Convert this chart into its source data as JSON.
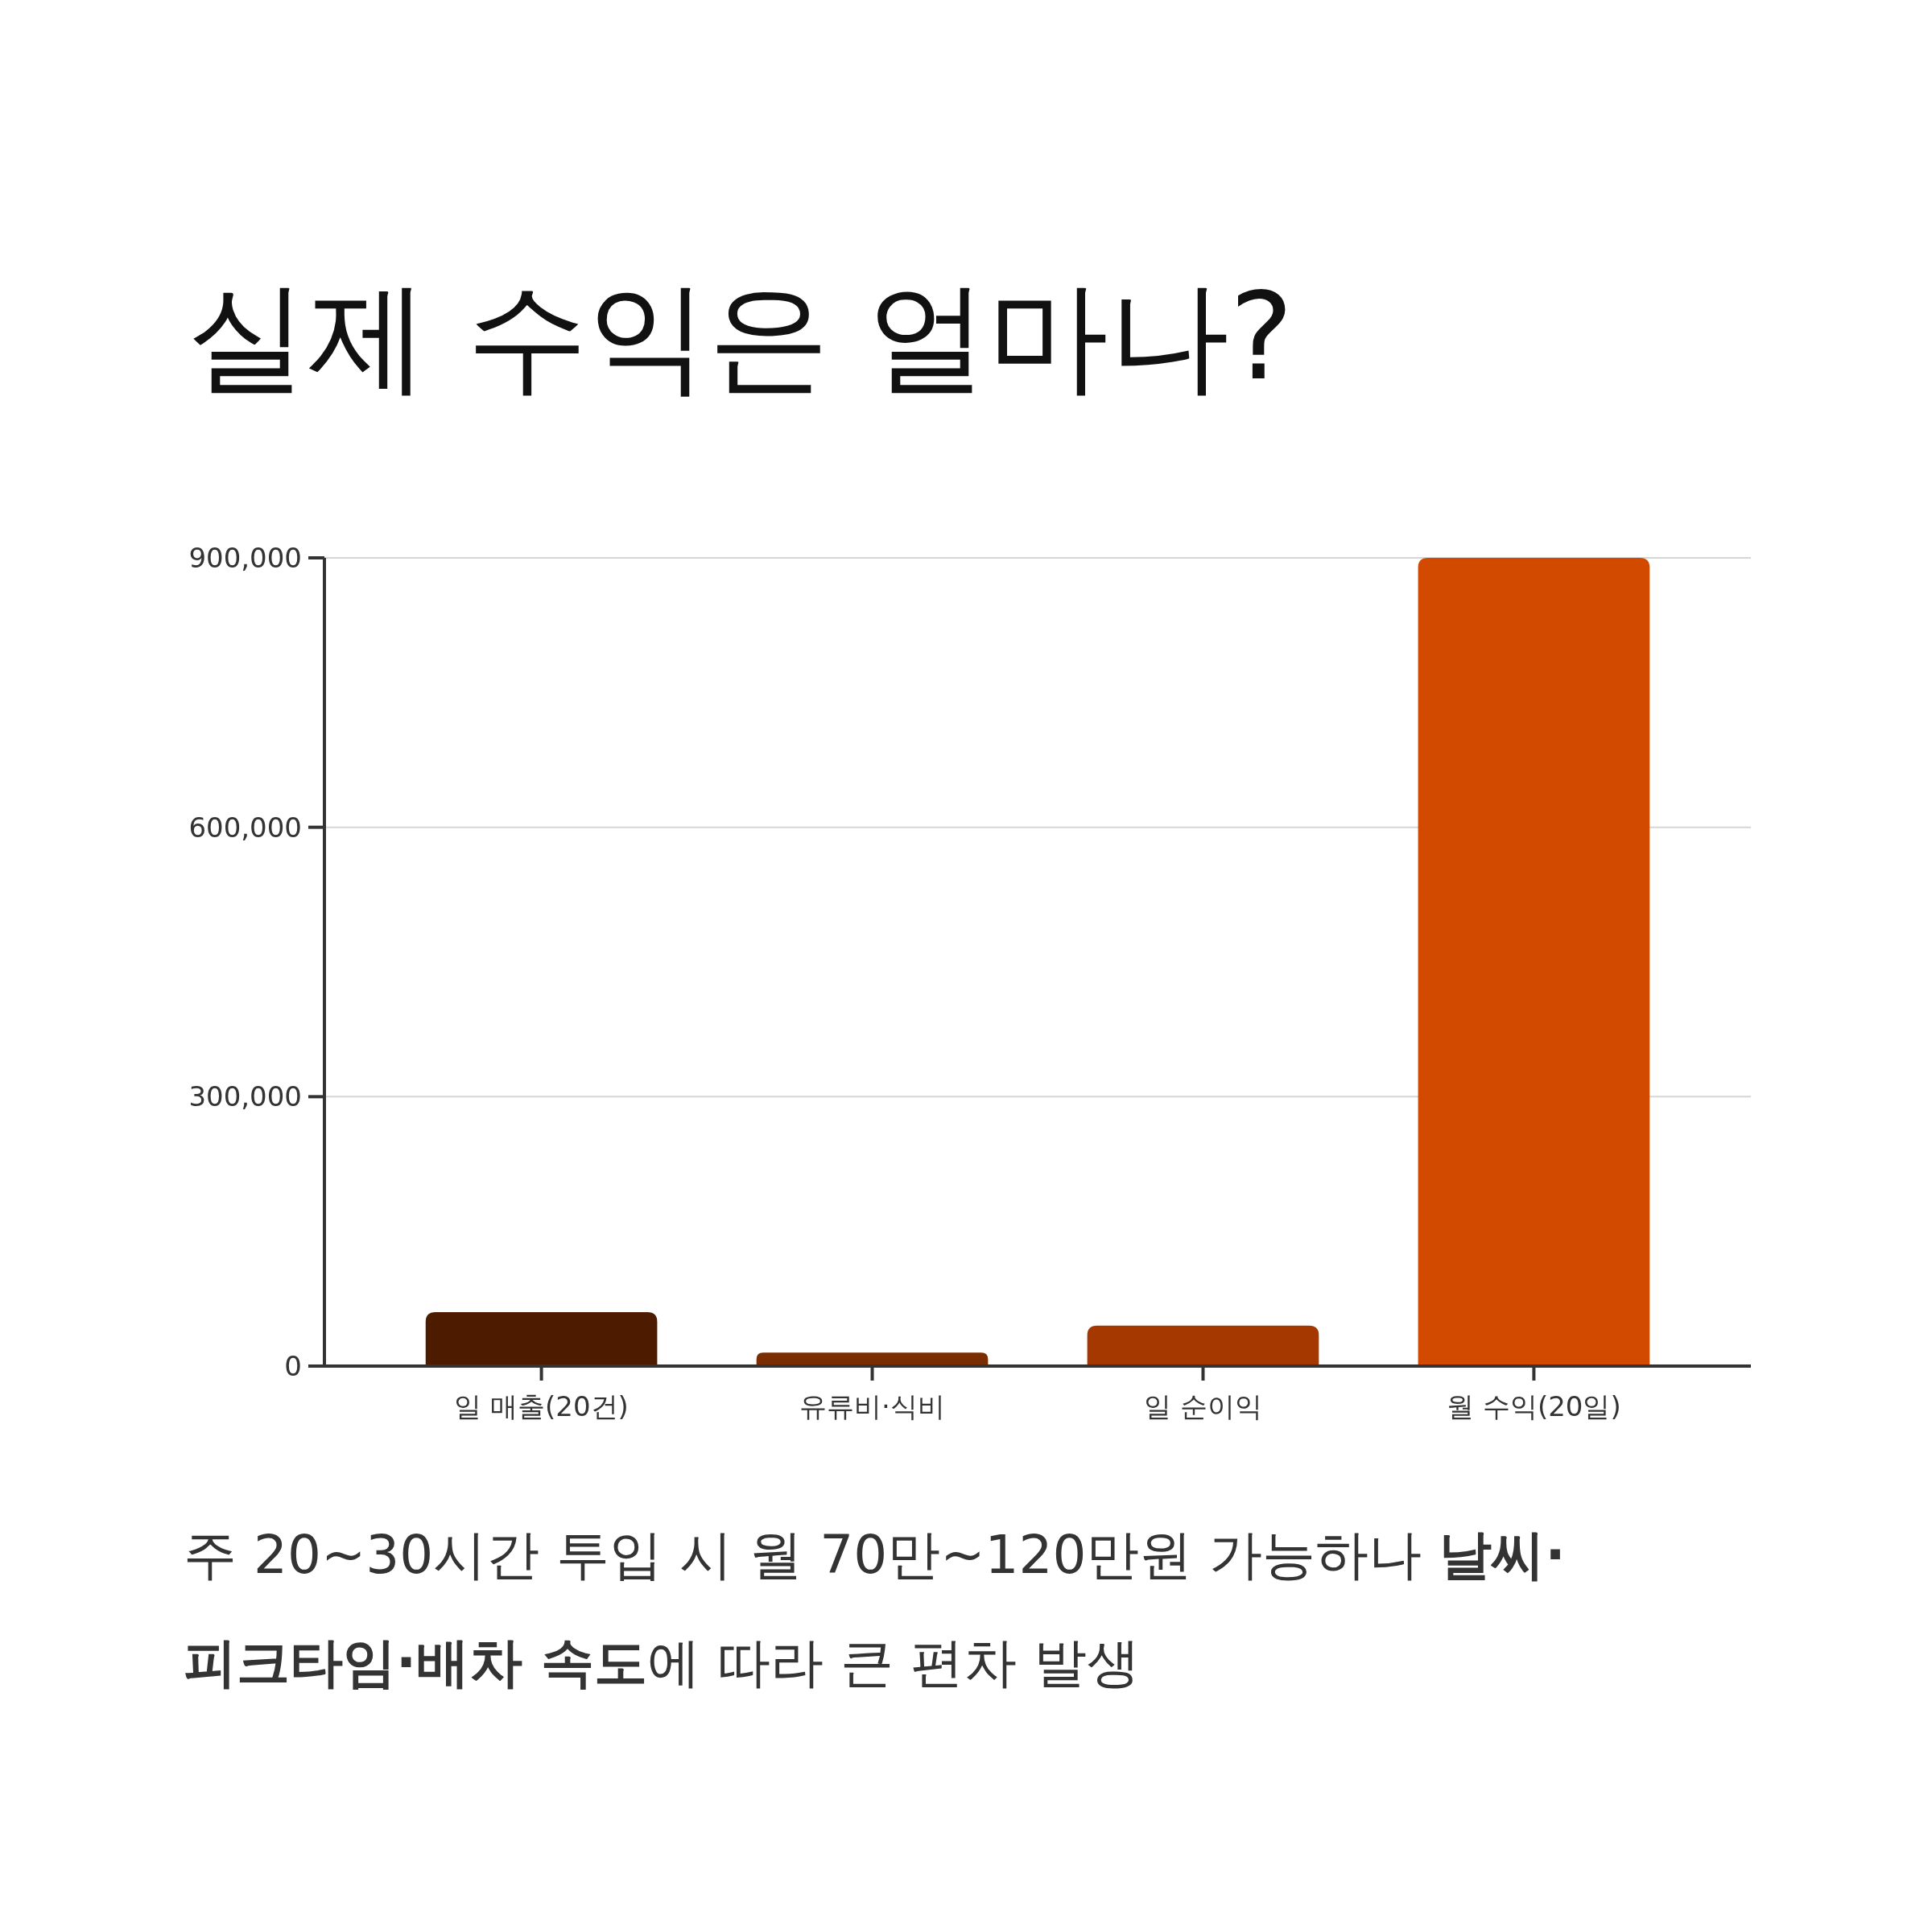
{
  "chart_data": {
    "type": "bar",
    "title": "실제 수익은 얼마나?",
    "annotations": [
      "주 20~30시간 투입 시 월 70만~120만원 가능하나 **날씨·피크타임·배차 속도**에 따라 큰 편차 발생"
    ],
    "categories": [
      "일 매출(20건)",
      "유류비·식비",
      "일 순이익",
      "월 수익(20일)"
    ],
    "values": [
      60000,
      15000,
      45000,
      900000
    ],
    "colors": [
      "#4d1c00",
      "#7a2d00",
      "#a53800",
      "#d14a00"
    ],
    "ylim": [
      0,
      900000
    ],
    "yticks": [
      {
        "value": 0,
        "label": "0"
      },
      {
        "value": 300000,
        "label": "300,000"
      },
      {
        "value": 600000,
        "label": "600,000"
      },
      {
        "value": 900000,
        "label": "900,000"
      }
    ],
    "grid": "y"
  }
}
